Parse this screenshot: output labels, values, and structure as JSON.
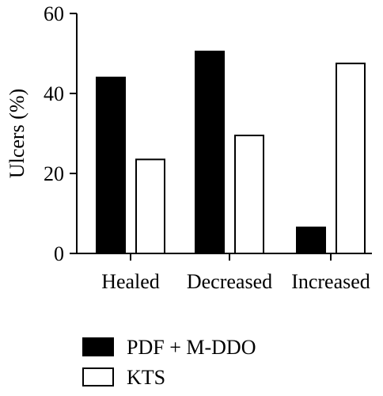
{
  "chart_data": {
    "type": "bar",
    "categories": [
      "Healed",
      "Decreased",
      "Increased"
    ],
    "series": [
      {
        "name": "PDF + M-DDO",
        "values": [
          44,
          50.5,
          6.5
        ],
        "color": "#000000"
      },
      {
        "name": "KTS",
        "values": [
          23.5,
          29.5,
          47.5
        ],
        "color": "#ffffff"
      }
    ],
    "ylabel": "Ulcers (%)",
    "xlabel": "",
    "ylim": [
      0,
      60
    ],
    "yticks": [
      0,
      20,
      40,
      60
    ],
    "grid": false,
    "legend_position": "bottom-left"
  }
}
